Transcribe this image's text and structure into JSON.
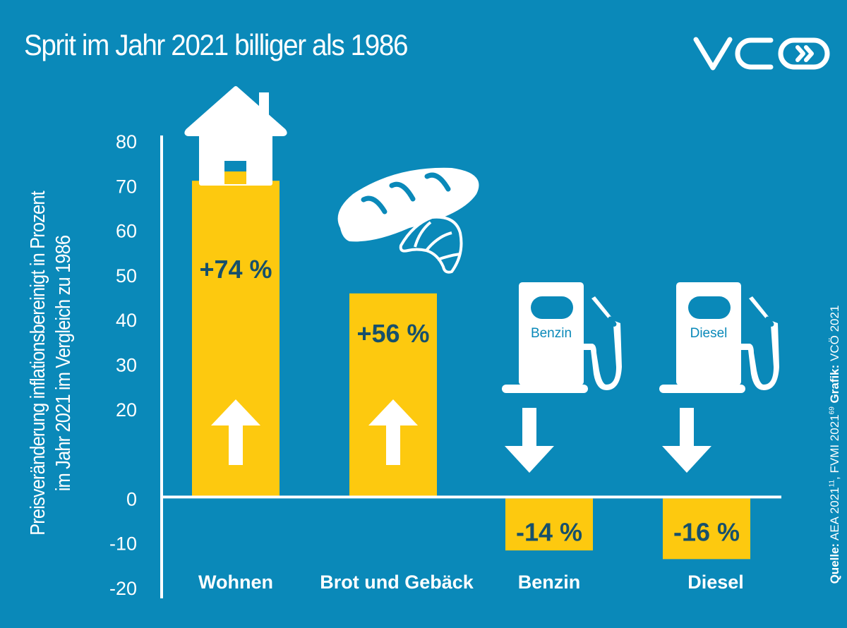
{
  "title": "Sprit im Jahr 2021 billiger als 1986",
  "logo": {
    "name": "VCÖ",
    "icon": "vco-logo"
  },
  "colors": {
    "background": "#0a89b9",
    "bar": "#fdc90f",
    "value_text": "#17506b",
    "axis": "#ffffff",
    "icon": "#ffffff"
  },
  "source": {
    "label": "Quelle:",
    "text": "AEA 2021",
    "ref1": "11",
    "text2": ", FVMI 2021",
    "ref2": "69",
    "grafik_label": "Grafik:",
    "grafik_text": "VCÖ 2021"
  },
  "chart_data": {
    "type": "bar",
    "title": "Sprit im Jahr 2021 billiger als 1986",
    "ylabel_lines": [
      "Preisveränderung inflationsbereinigt in Prozent",
      "im Jahr 2021 im Vergleich zu 1986"
    ],
    "xlabel": "",
    "ylim": [
      -20,
      80
    ],
    "yticks": [
      80,
      70,
      60,
      50,
      40,
      30,
      20,
      0,
      -10,
      -20
    ],
    "ytick_labels": [
      "80",
      "70",
      "60",
      "50",
      "40",
      "30",
      "20",
      "0",
      "-10",
      "-20"
    ],
    "ytick_values_all": [
      80,
      70,
      60,
      50,
      40,
      30,
      20,
      10,
      0,
      -10,
      -20
    ],
    "ytick_labels_all": [
      "80",
      "70",
      "60",
      "50",
      "40",
      "30",
      "20",
      "",
      "0",
      "-10",
      "-20"
    ],
    "grid": false,
    "categories": [
      "Wohnen",
      "Brot und Gebäck",
      "Benzin",
      "Diesel"
    ],
    "values": [
      74,
      56,
      -14,
      -16
    ],
    "bar_extents": [
      73,
      47,
      -12,
      -14
    ],
    "value_labels": [
      "+74 %",
      "+56 %",
      "-14 %",
      "-16 %"
    ],
    "category_icons": [
      "house-icon",
      "bread-croissant-icon",
      "fuel-pump-icon",
      "fuel-pump-icon"
    ],
    "pump_labels": [
      "",
      "",
      "Benzin",
      "Diesel"
    ],
    "direction_icons": [
      "arrow-up-icon",
      "arrow-up-icon",
      "arrow-down-icon",
      "arrow-down-icon"
    ],
    "legend": "none"
  }
}
